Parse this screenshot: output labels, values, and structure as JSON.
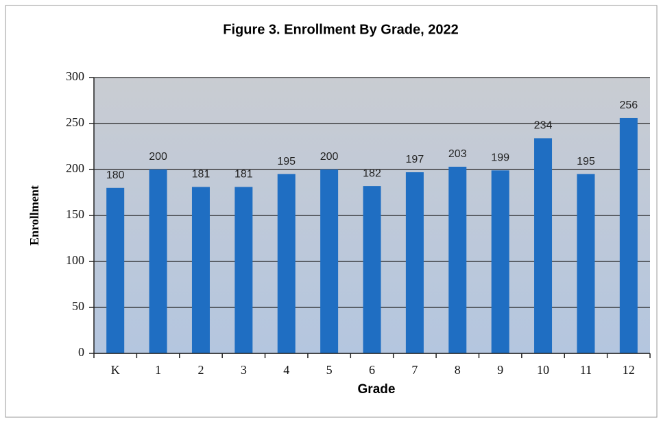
{
  "chart_data": {
    "type": "bar",
    "title": "Figure 3. Enrollment By Grade, 2022",
    "x_label": "Grade",
    "y_label": "Enrollment",
    "categories": [
      "K",
      "1",
      "2",
      "3",
      "4",
      "5",
      "6",
      "7",
      "8",
      "9",
      "10",
      "11",
      "12"
    ],
    "values": [
      180,
      200,
      181,
      181,
      195,
      200,
      182,
      197,
      203,
      199,
      234,
      195,
      256
    ],
    "color": "#1f6ec2",
    "ylim": [
      0,
      300
    ],
    "yticks": [
      0,
      50,
      100,
      150,
      200,
      250,
      300
    ],
    "grid": true
  }
}
